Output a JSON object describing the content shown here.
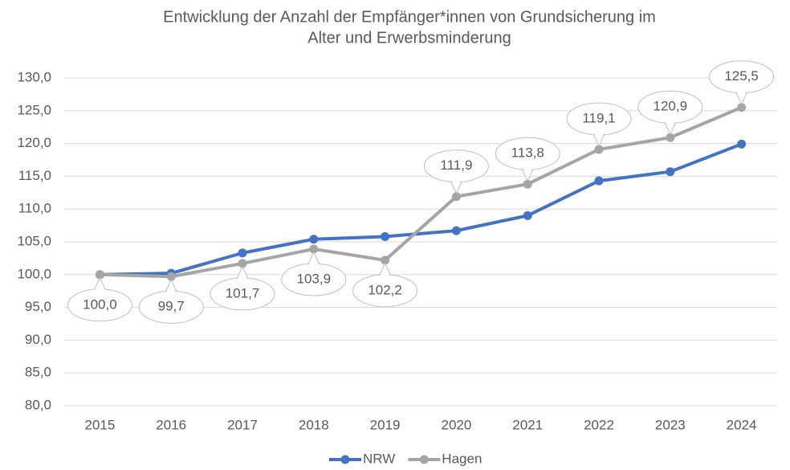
{
  "chart_data": {
    "type": "line",
    "title": [
      "Entwicklung der Anzahl der Empfänger*innen von Grundsicherung im",
      "Alter und Erwerbsminderung"
    ],
    "categories": [
      "2015",
      "2016",
      "2017",
      "2018",
      "2019",
      "2020",
      "2021",
      "2022",
      "2023",
      "2024"
    ],
    "series": [
      {
        "name": "NRW",
        "color": "#4472c4",
        "values": [
          100.0,
          100.2,
          103.3,
          105.4,
          105.8,
          106.7,
          109.0,
          114.3,
          115.7,
          119.9
        ]
      },
      {
        "name": "Hagen",
        "color": "#a5a5a5",
        "values": [
          100.0,
          99.7,
          101.7,
          103.9,
          102.2,
          111.9,
          113.8,
          119.1,
          120.9,
          125.5
        ],
        "value_labels": [
          "100,0",
          "99,7",
          "101,7",
          "103,9",
          "102,2",
          "111,9",
          "113,8",
          "119,1",
          "120,9",
          "125,5"
        ]
      }
    ],
    "ylim": [
      80,
      130
    ],
    "yticks": [
      {
        "value": 80,
        "label": "80,0"
      },
      {
        "value": 85,
        "label": "85,0"
      },
      {
        "value": 90,
        "label": "90,0"
      },
      {
        "value": 95,
        "label": "95,0"
      },
      {
        "value": 100,
        "label": "100,0"
      },
      {
        "value": 105,
        "label": "105,0"
      },
      {
        "value": 110,
        "label": "110,0"
      },
      {
        "value": 115,
        "label": "115,0"
      },
      {
        "value": 120,
        "label": "120,0"
      },
      {
        "value": 125,
        "label": "125,0"
      },
      {
        "value": 130,
        "label": "130,0"
      }
    ],
    "grid": true,
    "legend": "bottom"
  }
}
